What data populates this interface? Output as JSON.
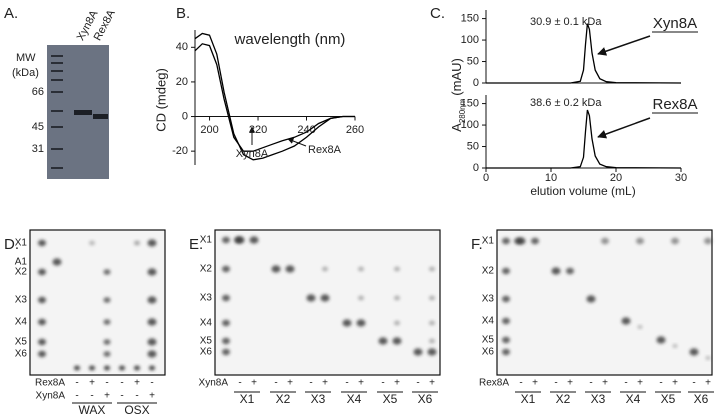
{
  "panel_a": {
    "label": "A.",
    "mw_label": "MW",
    "mw_unit": "(kDa)",
    "lanes": [
      "Xyn8A",
      "Rex8A"
    ],
    "markers": [
      "66",
      "45",
      "31"
    ]
  },
  "chart_data": [
    {
      "type": "line",
      "label": "B.",
      "title": "wavelength (nm)",
      "y_label": "CD (mdeg)",
      "xlim": [
        194,
        260
      ],
      "ylim": [
        -28,
        50
      ],
      "xticks": [
        200,
        220,
        240,
        260
      ],
      "yticks": [
        -20,
        0,
        20,
        40
      ],
      "x": [
        194,
        197,
        200,
        203,
        206,
        210,
        214,
        218,
        222,
        226,
        230,
        235,
        240,
        245,
        250,
        255,
        260
      ],
      "series": [
        {
          "name": "Xyn8A",
          "color": "#000000",
          "values": [
            38,
            42,
            41,
            30,
            10,
            -12,
            -20,
            -20,
            -18,
            -16,
            -14,
            -12,
            -9,
            -4,
            -1,
            0,
            0
          ]
        },
        {
          "name": "Rex8A",
          "color": "#000000",
          "values": [
            45,
            48,
            47,
            36,
            14,
            -10,
            -22,
            -25,
            -24,
            -22,
            -20,
            -17,
            -12,
            -6,
            -1,
            0,
            0
          ]
        }
      ]
    },
    {
      "type": "line",
      "label": "C.",
      "y_label": "A",
      "y_label_sub": "280nm",
      "y_label_unit": "(mAU)",
      "xlim": [
        0,
        30
      ],
      "ylim": [
        0,
        170
      ],
      "yticks": [
        0,
        50,
        100,
        150
      ],
      "x": [
        0,
        13,
        14.5,
        15,
        15.3,
        15.6,
        15.9,
        16.3,
        16.8,
        17.5,
        18.5,
        20,
        30
      ],
      "annotation": "30.9 ± 0.1 kDa",
      "series": [
        {
          "name": "Xyn8A",
          "color": "#000000",
          "values": [
            0,
            0,
            4,
            30,
            90,
            138,
            125,
            70,
            30,
            10,
            3,
            1,
            0
          ]
        }
      ]
    },
    {
      "type": "line",
      "x_label": "elution volume (mL)",
      "xlim": [
        0,
        30
      ],
      "ylim": [
        0,
        170
      ],
      "xticks": [
        0,
        10,
        20,
        30
      ],
      "yticks": [
        0,
        50,
        100,
        150
      ],
      "x": [
        0,
        13,
        14.5,
        15,
        15.3,
        15.6,
        15.9,
        16.3,
        16.8,
        17.5,
        18.5,
        20,
        30
      ],
      "annotation": "38.6 ± 0.2 kDa",
      "series": [
        {
          "name": "Rex8A",
          "color": "#000000",
          "values": [
            0,
            0,
            3,
            25,
            85,
            135,
            122,
            68,
            28,
            9,
            3,
            1,
            0
          ]
        }
      ]
    }
  ],
  "tlc_panels": [
    {
      "label": "D.",
      "rows": [
        "X1",
        "A1",
        "X2",
        "X3",
        "X4",
        "X5",
        "X6"
      ],
      "enzymes": [
        {
          "name": "Rex8A",
          "signs": [
            "-",
            "+",
            "-",
            "-",
            "+",
            "-"
          ]
        },
        {
          "name": "Xyn8A",
          "signs": [
            "-",
            "-",
            "+",
            "-",
            "-",
            "+"
          ]
        }
      ],
      "groups": [
        "WAX",
        "OSX"
      ]
    },
    {
      "label": "E.",
      "rows": [
        "X1",
        "X2",
        "X3",
        "X4",
        "X5",
        "X6"
      ],
      "enzymes": [
        {
          "name": "Xyn8A",
          "signs": [
            "-",
            "+",
            "-",
            "+",
            "-",
            "+",
            "-",
            "+",
            "-",
            "+",
            "-",
            "+"
          ]
        }
      ],
      "groups": [
        "X1",
        "X2",
        "X3",
        "X4",
        "X5",
        "X6"
      ]
    },
    {
      "label": "F.",
      "rows": [
        "X1",
        "X2",
        "X3",
        "X4",
        "X5",
        "X6"
      ],
      "enzymes": [
        {
          "name": "Rex8A",
          "signs": [
            "-",
            "+",
            "-",
            "+",
            "-",
            "+",
            "-",
            "+",
            "-",
            "+",
            "-",
            "+"
          ]
        }
      ],
      "groups": [
        "X1",
        "X2",
        "X3",
        "X4",
        "X5",
        "X6"
      ]
    }
  ]
}
